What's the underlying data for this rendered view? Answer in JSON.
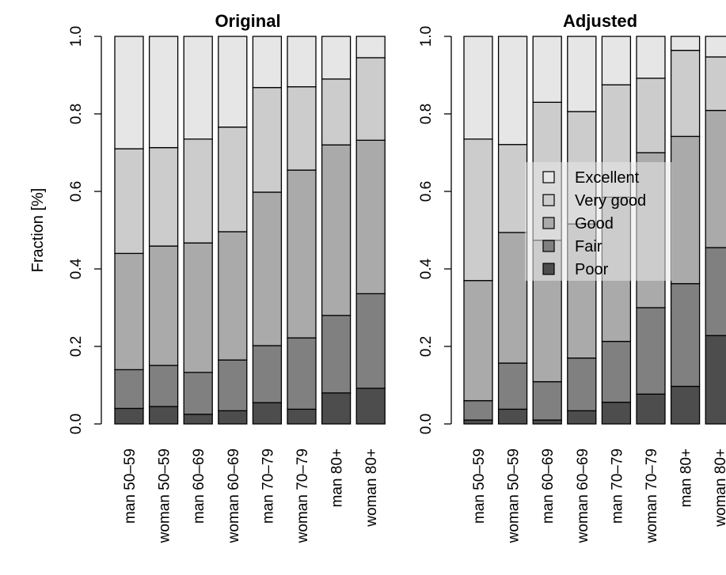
{
  "chart_data": [
    {
      "type": "bar",
      "stacked": true,
      "title": "Original",
      "ylabel": "Fraction [%]",
      "ylim": [
        0,
        1
      ],
      "yticks": [
        "0.0",
        "0.2",
        "0.4",
        "0.6",
        "0.8",
        "1.0"
      ],
      "categories": [
        "man 50–59",
        "woman 50–59",
        "man 60–69",
        "woman 60–69",
        "man 70–79",
        "woman 70–79",
        "man 80+",
        "woman 80+"
      ],
      "series": [
        {
          "name": "Poor",
          "values": [
            0.04,
            0.045,
            0.025,
            0.034,
            0.055,
            0.038,
            0.08,
            0.092
          ]
        },
        {
          "name": "Fair",
          "values": [
            0.1,
            0.106,
            0.108,
            0.131,
            0.147,
            0.184,
            0.2,
            0.244
          ]
        },
        {
          "name": "Good",
          "values": [
            0.3,
            0.308,
            0.334,
            0.331,
            0.396,
            0.433,
            0.44,
            0.396
          ]
        },
        {
          "name": "Very good",
          "values": [
            0.27,
            0.254,
            0.268,
            0.27,
            0.27,
            0.215,
            0.17,
            0.213
          ]
        },
        {
          "name": "Excellent",
          "values": [
            0.29,
            0.287,
            0.265,
            0.234,
            0.132,
            0.13,
            0.11,
            0.055
          ]
        }
      ]
    },
    {
      "type": "bar",
      "stacked": true,
      "title": "Adjusted",
      "ylim": [
        0,
        1
      ],
      "yticks": [
        "0.0",
        "0.2",
        "0.4",
        "0.6",
        "0.8",
        "1.0"
      ],
      "categories": [
        "man 50–59",
        "woman 50–59",
        "man 60–69",
        "woman 60–69",
        "man 70–79",
        "woman 70–79",
        "man 80+",
        "woman 80+"
      ],
      "series": [
        {
          "name": "Poor",
          "values": [
            0.01,
            0.038,
            0.01,
            0.034,
            0.056,
            0.077,
            0.097,
            0.228
          ]
        },
        {
          "name": "Fair",
          "values": [
            0.05,
            0.119,
            0.099,
            0.136,
            0.157,
            0.223,
            0.265,
            0.227
          ]
        },
        {
          "name": "Good",
          "values": [
            0.31,
            0.337,
            0.365,
            0.346,
            0.372,
            0.4,
            0.38,
            0.354
          ]
        },
        {
          "name": "Very good",
          "values": [
            0.365,
            0.227,
            0.356,
            0.29,
            0.29,
            0.192,
            0.222,
            0.138
          ]
        },
        {
          "name": "Excellent",
          "values": [
            0.265,
            0.279,
            0.17,
            0.194,
            0.125,
            0.108,
            0.036,
            0.053
          ]
        }
      ]
    }
  ],
  "legend": {
    "placement": "center-right of the Adjusted panel",
    "items": [
      "Excellent",
      "Very good",
      "Good",
      "Fair",
      "Poor"
    ]
  },
  "colors": {
    "Excellent": "#e6e6e6",
    "Very good": "#cccccc",
    "Good": "#aaaaaa",
    "Fair": "#808080",
    "Poor": "#4d4d4d",
    "legend_bg": "rgba(232,232,232,0.55)"
  }
}
